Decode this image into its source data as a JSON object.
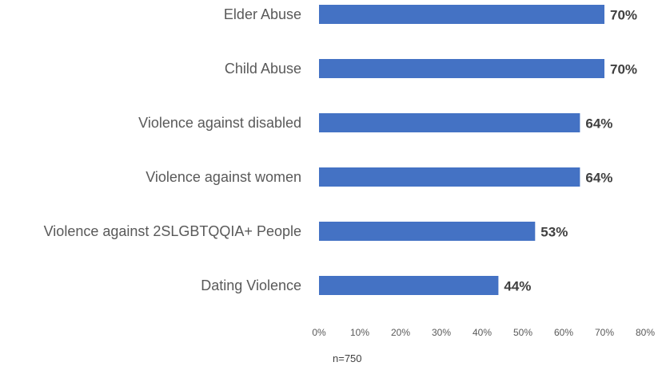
{
  "chart_data": {
    "type": "bar",
    "orientation": "horizontal",
    "categories": [
      "Elder Abuse",
      "Child Abuse",
      "Violence against disabled",
      "Violence against women",
      "Violence against 2SLGBTQQIA+ People",
      "Dating Violence"
    ],
    "values": [
      70,
      70,
      64,
      64,
      53,
      44
    ],
    "value_labels": [
      "70%",
      "70%",
      "64%",
      "64%",
      "53%",
      "44%"
    ],
    "xlim": [
      0,
      80
    ],
    "x_ticks": [
      0,
      10,
      20,
      30,
      40,
      50,
      60,
      70,
      80
    ],
    "x_tick_labels": [
      "0%",
      "10%",
      "20%",
      "30%",
      "40%",
      "50%",
      "60%",
      "70%",
      "80%"
    ],
    "title": "",
    "xlabel": "",
    "ylabel": "",
    "grid": false,
    "bar_color": "#4472C4",
    "note": "n=750"
  }
}
